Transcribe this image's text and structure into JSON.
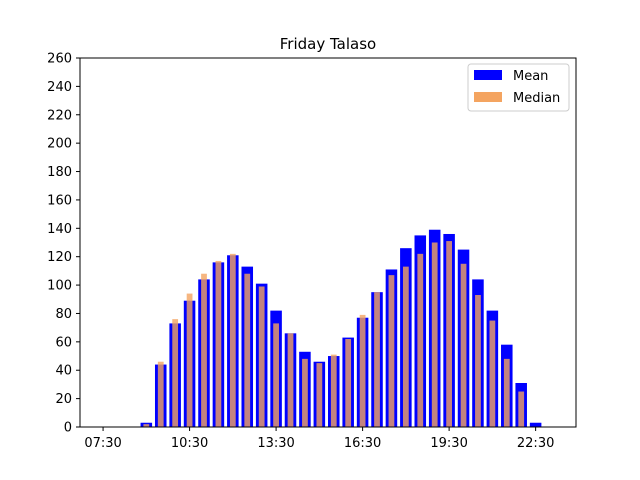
{
  "chart_data": {
    "type": "bar",
    "title": "Friday Talaso",
    "xlabel": "",
    "ylabel": "",
    "ylim": [
      0,
      260
    ],
    "y_ticks": [
      0,
      20,
      40,
      60,
      80,
      100,
      120,
      140,
      160,
      180,
      200,
      220,
      240,
      260
    ],
    "x_ticks": [
      "07:30",
      "10:30",
      "13:30",
      "16:30",
      "19:30",
      "22:30"
    ],
    "x_tick_index": [
      0,
      6,
      12,
      18,
      24,
      30
    ],
    "categories": [
      "07:30",
      "08:00",
      "08:30",
      "09:00",
      "09:30",
      "10:00",
      "10:30",
      "11:00",
      "11:30",
      "12:00",
      "12:30",
      "13:00",
      "13:30",
      "14:00",
      "14:30",
      "15:00",
      "15:30",
      "16:00",
      "16:30",
      "17:00",
      "17:30",
      "18:00",
      "18:30",
      "19:00",
      "19:30",
      "20:00",
      "20:30",
      "21:00",
      "21:30",
      "22:00",
      "22:30"
    ],
    "series": [
      {
        "name": "Mean",
        "color": "#0000ff",
        "values": [
          0,
          0,
          0,
          3,
          44,
          73,
          89,
          104,
          116,
          121,
          113,
          101,
          82,
          66,
          53,
          46,
          50,
          63,
          77,
          95,
          111,
          126,
          135,
          139,
          136,
          125,
          104,
          82,
          58,
          31,
          3
        ]
      },
      {
        "name": "Median",
        "color": "#f4a460",
        "values": [
          0,
          0,
          0,
          2,
          46,
          76,
          94,
          108,
          117,
          122,
          108,
          99,
          73,
          66,
          48,
          45,
          51,
          62,
          79,
          95,
          107,
          113,
          122,
          130,
          131,
          115,
          93,
          75,
          48,
          25,
          0
        ]
      }
    ],
    "legend": {
      "position": "top-right"
    },
    "grid": false
  }
}
